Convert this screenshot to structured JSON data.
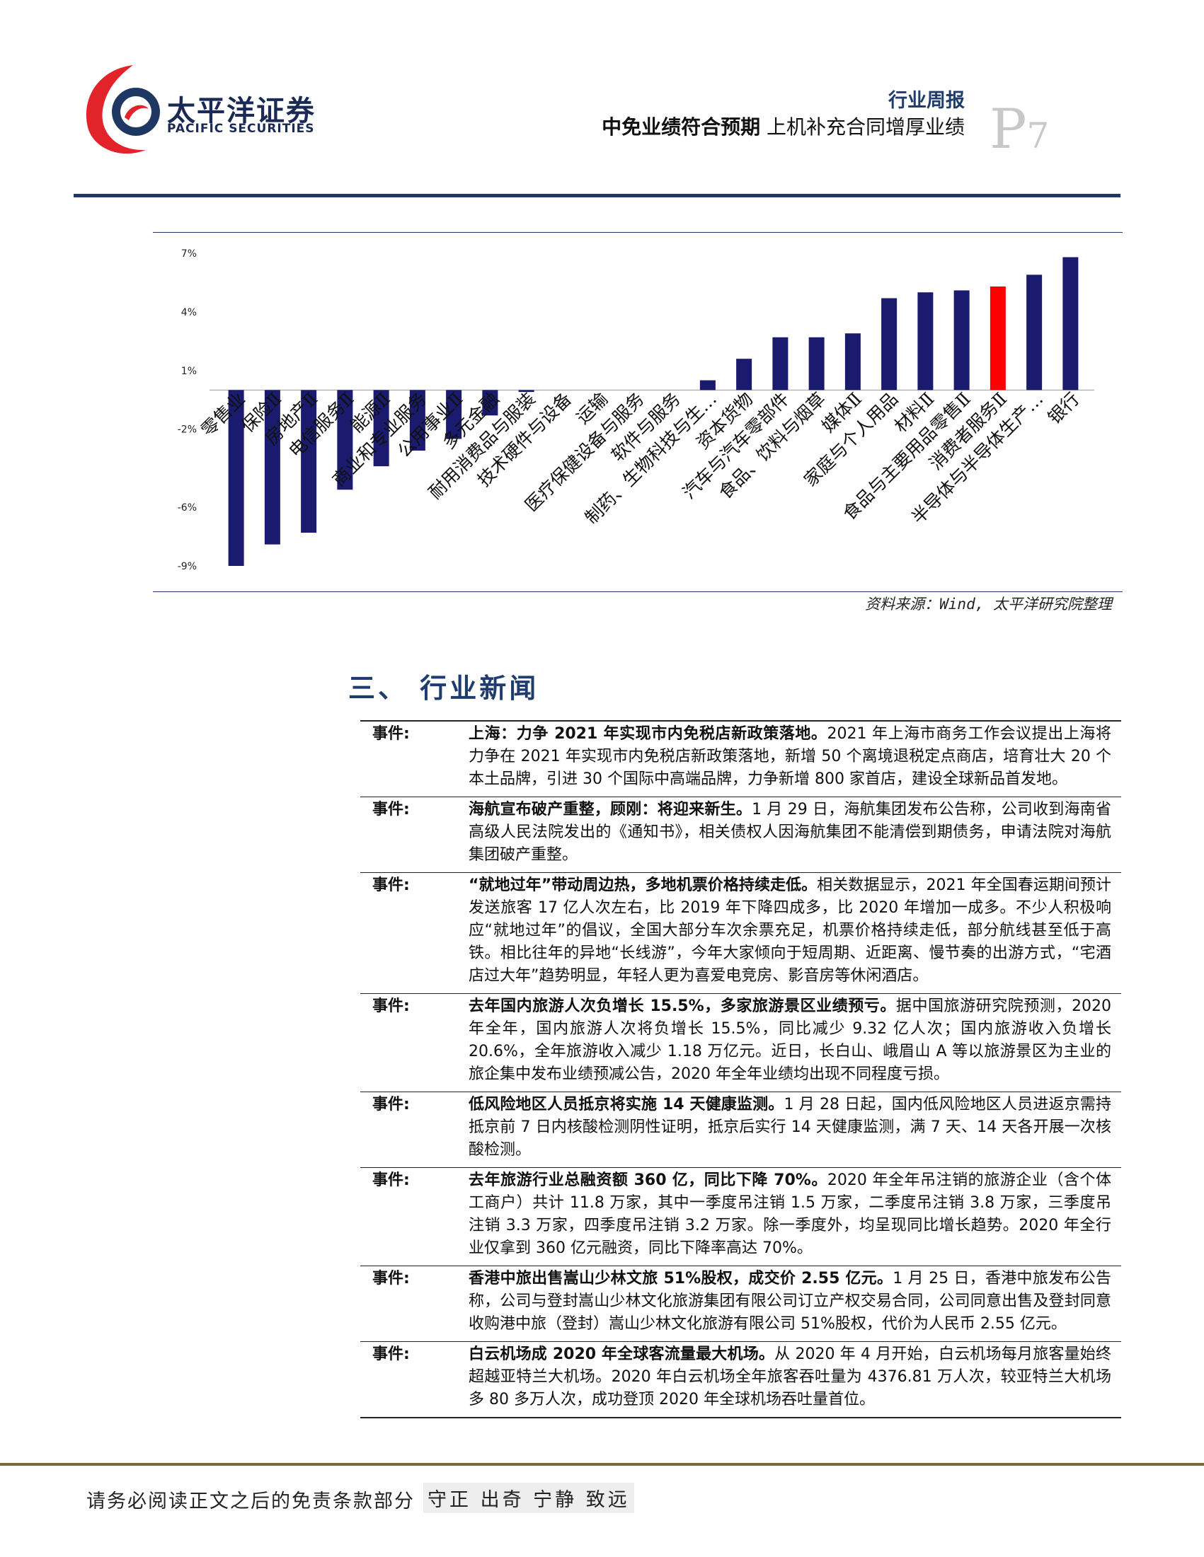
{
  "header": {
    "brand_cn": "太平洋证券",
    "brand_en": "PACIFIC SECURITIES",
    "report_type": "行业周报",
    "title_bold": "中免业绩符合预期",
    "title_rest": "上机补充合同增厚业绩",
    "page_letter": "P",
    "page_number": "7",
    "brand_colors": {
      "red": "#e2242a",
      "navy": "#1f3763"
    }
  },
  "chart_data": {
    "type": "bar",
    "categories": [
      "零售业",
      "保险Ⅱ",
      "房地产Ⅱ",
      "电信服务Ⅱ",
      "能源Ⅱ",
      "商业和专业服务",
      "公用事业Ⅱ",
      "多元金融",
      "耐用消费品与服装",
      "技术硬件与设备",
      "运输",
      "医疗保健设备与服务",
      "软件与服务",
      "制药、生物科技与生…",
      "资本货物",
      "汽车与汽车零部件",
      "食品、饮料与烟草",
      "媒体Ⅱ",
      "家庭与个人用品",
      "材料Ⅱ",
      "食品与主要用品零售Ⅱ",
      "消费者服务Ⅱ",
      "半导体与半导体生产…",
      "银行"
    ],
    "values": [
      -9.0,
      -7.9,
      -7.3,
      -5.1,
      -3.9,
      -3.1,
      -2.5,
      -1.3,
      -0.1,
      0.0,
      0.0,
      0.0,
      0.0,
      0.5,
      1.6,
      2.7,
      2.7,
      2.9,
      4.7,
      5.0,
      5.1,
      5.3,
      5.9,
      6.8
    ],
    "highlight_index": 21,
    "highlight_color": "#ff0000",
    "bar_color": "#1a1a6e",
    "ylim": [
      -9,
      7
    ],
    "yticks": [
      "7%",
      "4%",
      "1%",
      "-2%",
      "-6%",
      "-9%"
    ],
    "ytick_values": [
      7,
      4,
      1,
      -2,
      -6,
      -9
    ],
    "grid": false
  },
  "source": "资料来源：Wind, 太平洋研究院整理",
  "section_title": "三、 行业新闻",
  "news": [
    {
      "label": "事件:",
      "head": "上海：力争 2021 年实现市内免税店新政策落地。",
      "body": "2021 年上海市商务工作会议提出上海将力争在 2021 年实现市内免税店新政策落地，新增 50 个离境退税定点商店，培育壮大 20 个本土品牌，引进 30 个国际中高端品牌，力争新增 800 家首店，建设全球新品首发地。"
    },
    {
      "label": "事件:",
      "head": "海航宣布破产重整，顾刚：将迎来新生。",
      "body": "1 月 29 日，海航集团发布公告称，公司收到海南省高级人民法院发出的《通知书》，相关债权人因海航集团不能清偿到期债务，申请法院对海航集团破产重整。"
    },
    {
      "label": "事件:",
      "head": "“就地过年”带动周边热，多地机票价格持续走低。",
      "body": "相关数据显示，2021 年全国春运期间预计发送旅客 17 亿人次左右，比 2019 年下降四成多，比 2020 年增加一成多。不少人积极响应“就地过年”的倡议，全国大部分车次余票充足，机票价格持续走低，部分航线甚至低于高铁。相比往年的异地“长线游”，今年大家倾向于短周期、近距离、慢节奏的出游方式，“宅酒店过大年”趋势明显，年轻人更为喜爱电竞房、影音房等休闲酒店。"
    },
    {
      "label": "事件:",
      "head": "去年国内旅游人次负增长 15.5%，多家旅游景区业绩预亏。",
      "body": "据中国旅游研究院预测，2020 年全年，国内旅游人次将负增长 15.5%，同比减少 9.32 亿人次；国内旅游收入负增长 20.6%，全年旅游收入减少 1.18 万亿元。近日，长白山、峨眉山 A 等以旅游景区为主业的旅企集中发布业绩预减公告，2020 年全年业绩均出现不同程度亏损。"
    },
    {
      "label": "事件:",
      "head": "低风险地区人员抵京将实施 14 天健康监测。",
      "body": "1 月 28 日起，国内低风险地区人员进返京需持抵京前 7 日内核酸检测阴性证明，抵京后实行 14 天健康监测，满 7 天、14 天各开展一次核酸检测。"
    },
    {
      "label": "事件:",
      "head": "去年旅游行业总融资额 360 亿，同比下降 70%。",
      "body": "2020 年全年吊注销的旅游企业（含个体工商户）共计 11.8 万家，其中一季度吊注销 1.5 万家，二季度吊注销 3.8 万家，三季度吊注销 3.3 万家，四季度吊注销 3.2 万家。除一季度外，均呈现同比增长趋势。2020 年全行业仅拿到 360 亿元融资，同比下降率高达 70%。"
    },
    {
      "label": "事件:",
      "head": "香港中旅出售嵩山少林文旅 51%股权，成交价 2.55 亿元。",
      "body": "1 月 25 日，香港中旅发布公告称，公司与登封嵩山少林文化旅游集团有限公司订立产权交易合同，公司同意出售及登封同意收购港中旅（登封）嵩山少林文化旅游有限公司 51%股权，代价为人民币 2.55 亿元。"
    },
    {
      "label": "事件:",
      "head": "白云机场成 2020 年全球客流量最大机场。",
      "body": "从 2020 年 4 月开始，白云机场每月旅客量始终超越亚特兰大机场。2020 年白云机场全年旅客吞吐量为 4376.81 万人次，较亚特兰大机场多 80 多万人次，成功登顶 2020 年全球机场吞吐量首位。"
    }
  ],
  "footer": {
    "disclaimer": "请务必阅读正文之后的免责条款部分",
    "motto": "守正 出奇 宁静 致远"
  }
}
